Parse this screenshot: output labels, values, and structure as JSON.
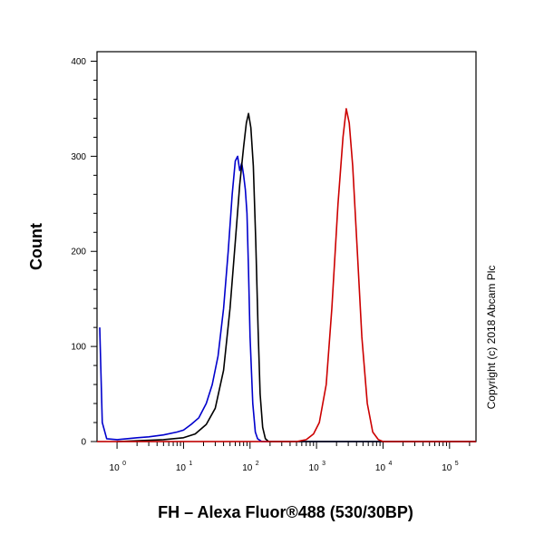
{
  "chart_data": {
    "type": "line",
    "title": "",
    "xlabel": "FH – Alexa Fluor®488 (530/30BP)",
    "ylabel": "Count",
    "x_scale": "log",
    "xlim": [
      0.5,
      250000
    ],
    "ylim": [
      0,
      410
    ],
    "x_tick_labels": [
      {
        "base": "10",
        "exp": "0",
        "value": 1
      },
      {
        "base": "10",
        "exp": "1",
        "value": 10
      },
      {
        "base": "10",
        "exp": "2",
        "value": 100
      },
      {
        "base": "10",
        "exp": "3",
        "value": 1000
      },
      {
        "base": "10",
        "exp": "4",
        "value": 10000
      },
      {
        "base": "10",
        "exp": "5",
        "value": 100000
      }
    ],
    "y_ticks": [
      "0",
      "100",
      "200",
      "300",
      "400"
    ],
    "copyright": "Copyright (c) 2018 Abcam Plc",
    "series": [
      {
        "color": "#0000cc",
        "points": [
          [
            0.55,
            120
          ],
          [
            0.6,
            20
          ],
          [
            0.7,
            3
          ],
          [
            1,
            2
          ],
          [
            2,
            4
          ],
          [
            3,
            5
          ],
          [
            5,
            7
          ],
          [
            8,
            10
          ],
          [
            10,
            12
          ],
          [
            13,
            18
          ],
          [
            17,
            25
          ],
          [
            22,
            40
          ],
          [
            27,
            60
          ],
          [
            33,
            90
          ],
          [
            40,
            140
          ],
          [
            47,
            200
          ],
          [
            54,
            260
          ],
          [
            60,
            295
          ],
          [
            65,
            300
          ],
          [
            70,
            285
          ],
          [
            75,
            293
          ],
          [
            80,
            280
          ],
          [
            85,
            265
          ],
          [
            90,
            240
          ],
          [
            95,
            180
          ],
          [
            100,
            110
          ],
          [
            110,
            40
          ],
          [
            120,
            10
          ],
          [
            130,
            3
          ],
          [
            150,
            0
          ],
          [
            250000,
            0
          ]
        ]
      },
      {
        "color": "#000000",
        "points": [
          [
            1,
            0
          ],
          [
            5,
            2
          ],
          [
            10,
            4
          ],
          [
            15,
            8
          ],
          [
            22,
            18
          ],
          [
            30,
            35
          ],
          [
            40,
            75
          ],
          [
            50,
            140
          ],
          [
            60,
            210
          ],
          [
            70,
            270
          ],
          [
            80,
            310
          ],
          [
            88,
            335
          ],
          [
            95,
            345
          ],
          [
            103,
            330
          ],
          [
            112,
            290
          ],
          [
            122,
            210
          ],
          [
            132,
            120
          ],
          [
            142,
            50
          ],
          [
            155,
            15
          ],
          [
            170,
            3
          ],
          [
            190,
            0
          ],
          [
            250000,
            0
          ]
        ]
      },
      {
        "color": "#cc0000",
        "points": [
          [
            0.5,
            0
          ],
          [
            500,
            0
          ],
          [
            700,
            2
          ],
          [
            900,
            8
          ],
          [
            1100,
            20
          ],
          [
            1400,
            60
          ],
          [
            1700,
            140
          ],
          [
            2100,
            250
          ],
          [
            2500,
            320
          ],
          [
            2800,
            350
          ],
          [
            3100,
            335
          ],
          [
            3500,
            290
          ],
          [
            4100,
            200
          ],
          [
            4800,
            110
          ],
          [
            5800,
            40
          ],
          [
            7000,
            10
          ],
          [
            8500,
            2
          ],
          [
            10000,
            0
          ],
          [
            250000,
            0
          ]
        ]
      }
    ]
  }
}
